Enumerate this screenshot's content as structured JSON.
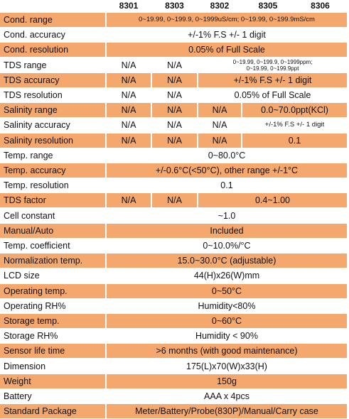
{
  "models": [
    "8301",
    "8303",
    "8302",
    "8305",
    "8306"
  ],
  "rows": [
    {
      "label": "Cond. range",
      "shaded": true,
      "cells": [
        {
          "span": "full",
          "text": "0~19.99, 0~199.9, 0~1999uS/cm; 0~19.99, 0~199.9mS/cm",
          "size": "tiny"
        }
      ]
    },
    {
      "label": "Cond. accuracy",
      "shaded": false,
      "cells": [
        {
          "span": "full",
          "text": "+/-1% F.S +/- 1 digit"
        }
      ]
    },
    {
      "label": "Cond. resolution",
      "shaded": true,
      "cells": [
        {
          "span": "full",
          "text": "0.05% of Full Scale"
        }
      ]
    },
    {
      "label": "TDS range",
      "shaded": false,
      "cells": [
        {
          "span": "c1",
          "text": "N/A"
        },
        {
          "span": "c2",
          "text": "N/A"
        },
        {
          "span": "c345",
          "text": "0~19.99, 0~199.9, 0~1999ppm;",
          "text2": "0~19.99, 0~199.9ppt",
          "size": "small"
        }
      ]
    },
    {
      "label": "TDS accuracy",
      "shaded": true,
      "cells": [
        {
          "span": "c1",
          "text": "N/A"
        },
        {
          "span": "c2",
          "text": "N/A"
        },
        {
          "span": "c345",
          "text": "+/-1% F.S +/- 1 digit"
        }
      ]
    },
    {
      "label": "TDS resolution",
      "shaded": false,
      "cells": [
        {
          "span": "c1",
          "text": "N/A"
        },
        {
          "span": "c2",
          "text": "N/A"
        },
        {
          "span": "c345",
          "text": "0.05% of Full Scale"
        }
      ]
    },
    {
      "label": "Salinity range",
      "shaded": true,
      "cells": [
        {
          "span": "c1",
          "text": "N/A"
        },
        {
          "span": "c2",
          "text": "N/A"
        },
        {
          "span": "c3",
          "text": "N/A"
        },
        {
          "span": "c45",
          "text": "0.0~70.0ppt(KCl)"
        }
      ]
    },
    {
      "label": "Salinity accuracy",
      "shaded": false,
      "cells": [
        {
          "span": "c1",
          "text": "N/A"
        },
        {
          "span": "c2",
          "text": "N/A"
        },
        {
          "span": "c3",
          "text": "N/A"
        },
        {
          "span": "c45",
          "text": "+/-1% F.S +/- 1 digit",
          "size": "tiny"
        }
      ]
    },
    {
      "label": "Salinity resolution",
      "shaded": true,
      "cells": [
        {
          "span": "c1",
          "text": "N/A"
        },
        {
          "span": "c2",
          "text": "N/A"
        },
        {
          "span": "c3",
          "text": "N/A"
        },
        {
          "span": "c45",
          "text": "0.1"
        }
      ]
    },
    {
      "label": "Temp. range",
      "shaded": false,
      "cells": [
        {
          "span": "full",
          "text": "0~80.0°C"
        }
      ]
    },
    {
      "label": "Temp. accuracy",
      "shaded": true,
      "cells": [
        {
          "span": "full",
          "text": "+/-0.6°C(<50°C), other range +/-1°C"
        }
      ]
    },
    {
      "label": "Temp. resolution",
      "shaded": false,
      "cells": [
        {
          "span": "full",
          "text": "0.1"
        }
      ]
    },
    {
      "label": "TDS factor",
      "shaded": true,
      "cells": [
        {
          "span": "c1",
          "text": "N/A"
        },
        {
          "span": "c2",
          "text": "N/A"
        },
        {
          "span": "c345",
          "text": "0.4~1.00"
        }
      ]
    },
    {
      "label": "Cell constant",
      "shaded": false,
      "cells": [
        {
          "span": "full",
          "text": "~1.0"
        }
      ]
    },
    {
      "label": "Manual/Auto",
      "shaded": true,
      "cells": [
        {
          "span": "full",
          "text": "Included"
        }
      ]
    },
    {
      "label": "Temp. coefficient",
      "shaded": false,
      "cells": [
        {
          "span": "full",
          "text": "0~10.0%/°C"
        }
      ]
    },
    {
      "label": "Normalization temp.",
      "shaded": true,
      "cells": [
        {
          "span": "full",
          "text": "15.0~30.0°C (adjustable)"
        }
      ]
    },
    {
      "label": "LCD size",
      "shaded": false,
      "cells": [
        {
          "span": "full",
          "text": "44(H)x26(W)mm"
        }
      ]
    },
    {
      "label": "Operating temp.",
      "shaded": true,
      "cells": [
        {
          "span": "full",
          "text": "0~50°C"
        }
      ]
    },
    {
      "label": "Operating RH%",
      "shaded": false,
      "cells": [
        {
          "span": "full",
          "text": "Humidity<80%"
        }
      ]
    },
    {
      "label": "Storage temp.",
      "shaded": true,
      "cells": [
        {
          "span": "full",
          "text": "0~60°C"
        }
      ]
    },
    {
      "label": "Storage RH%",
      "shaded": false,
      "cells": [
        {
          "span": "full",
          "text": "Humidity < 90%"
        }
      ]
    },
    {
      "label": "Sensor life time",
      "shaded": true,
      "cells": [
        {
          "span": "full",
          "text": ">6 months (with good maintenance)"
        }
      ]
    },
    {
      "label": "Dimension",
      "shaded": false,
      "cells": [
        {
          "span": "full",
          "text": "175(L)x70(W)x33(H)"
        }
      ]
    },
    {
      "label": "Weight",
      "shaded": true,
      "cells": [
        {
          "span": "full",
          "text": "150g"
        }
      ]
    },
    {
      "label": "Battery",
      "shaded": false,
      "cells": [
        {
          "span": "full",
          "text": "AAA x 4pcs"
        }
      ]
    },
    {
      "label": "Standard Package",
      "shaded": true,
      "cells": [
        {
          "span": "full",
          "text": "Meter/Battery/Probe(830P)/Manual/Carry case"
        }
      ]
    }
  ]
}
